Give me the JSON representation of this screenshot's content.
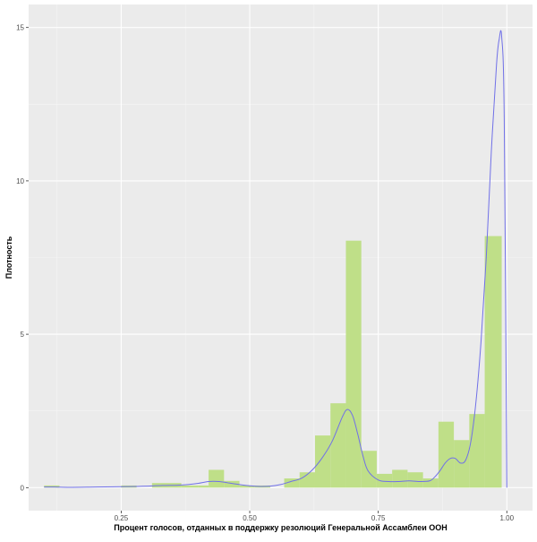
{
  "chart_data": {
    "type": "bar",
    "subtype": "histogram-with-density",
    "title": "",
    "xlabel": "Процент голосов, отданных в поддержку резолюций Генеральной Ассамблеи ООН",
    "ylabel": "Плотность",
    "xlim": [
      0.07,
      1.05
    ],
    "ylim": [
      -0.75,
      15.75
    ],
    "x_ticks": [
      0.25,
      0.5,
      0.75,
      1.0
    ],
    "x_tick_labels": [
      "0.25",
      "0.50",
      "0.75",
      "1.00"
    ],
    "y_ticks": [
      0,
      5,
      10,
      15
    ],
    "y_tick_labels": [
      "0",
      "5",
      "10",
      "15"
    ],
    "grid": true,
    "legend": "none",
    "colors": {
      "panel_background": "#ebebeb",
      "grid_major": "#ffffff",
      "grid_minor": "#f5f5f5",
      "bar_fill": "#bfdf88",
      "density_line": "#7070e8",
      "tick_text": "#4d4d4d"
    },
    "bins": [
      {
        "x0": 0.1,
        "x1": 0.13,
        "value": 0.07
      },
      {
        "x0": 0.13,
        "x1": 0.25,
        "value": 0.0
      },
      {
        "x0": 0.25,
        "x1": 0.28,
        "value": 0.07
      },
      {
        "x0": 0.28,
        "x1": 0.31,
        "value": 0.0
      },
      {
        "x0": 0.31,
        "x1": 0.367,
        "value": 0.15
      },
      {
        "x0": 0.367,
        "x1": 0.4,
        "value": 0.07
      },
      {
        "x0": 0.4,
        "x1": 0.42,
        "value": 0.07
      },
      {
        "x0": 0.42,
        "x1": 0.45,
        "value": 0.58
      },
      {
        "x0": 0.45,
        "x1": 0.48,
        "value": 0.22
      },
      {
        "x0": 0.48,
        "x1": 0.51,
        "value": 0.07
      },
      {
        "x0": 0.51,
        "x1": 0.54,
        "value": 0.07
      },
      {
        "x0": 0.54,
        "x1": 0.567,
        "value": 0.0
      },
      {
        "x0": 0.567,
        "x1": 0.597,
        "value": 0.3
      },
      {
        "x0": 0.597,
        "x1": 0.627,
        "value": 0.5
      },
      {
        "x0": 0.627,
        "x1": 0.657,
        "value": 1.7
      },
      {
        "x0": 0.657,
        "x1": 0.687,
        "value": 2.75
      },
      {
        "x0": 0.687,
        "x1": 0.717,
        "value": 8.05
      },
      {
        "x0": 0.717,
        "x1": 0.747,
        "value": 1.2
      },
      {
        "x0": 0.747,
        "x1": 0.777,
        "value": 0.45
      },
      {
        "x0": 0.777,
        "x1": 0.807,
        "value": 0.58
      },
      {
        "x0": 0.807,
        "x1": 0.837,
        "value": 0.5
      },
      {
        "x0": 0.837,
        "x1": 0.867,
        "value": 0.3
      },
      {
        "x0": 0.867,
        "x1": 0.897,
        "value": 2.15
      },
      {
        "x0": 0.897,
        "x1": 0.927,
        "value": 1.55
      },
      {
        "x0": 0.927,
        "x1": 0.957,
        "value": 2.4
      },
      {
        "x0": 0.957,
        "x1": 0.99,
        "value": 8.2
      }
    ],
    "density": {
      "x": [
        0.1,
        0.12,
        0.15,
        0.2,
        0.25,
        0.28,
        0.3,
        0.33,
        0.36,
        0.38,
        0.4,
        0.42,
        0.44,
        0.46,
        0.48,
        0.5,
        0.52,
        0.54,
        0.56,
        0.58,
        0.6,
        0.62,
        0.64,
        0.66,
        0.68,
        0.69,
        0.7,
        0.71,
        0.72,
        0.73,
        0.75,
        0.77,
        0.79,
        0.81,
        0.83,
        0.85,
        0.86,
        0.87,
        0.88,
        0.89,
        0.9,
        0.91,
        0.92,
        0.93,
        0.94,
        0.95,
        0.96,
        0.97,
        0.98,
        0.985,
        0.99,
        0.995,
        1.0
      ],
      "y": [
        0.02,
        0.02,
        0.01,
        0.02,
        0.03,
        0.04,
        0.05,
        0.07,
        0.08,
        0.1,
        0.14,
        0.2,
        0.2,
        0.15,
        0.1,
        0.06,
        0.04,
        0.05,
        0.1,
        0.2,
        0.3,
        0.55,
        0.95,
        1.5,
        2.3,
        2.55,
        2.35,
        1.75,
        1.05,
        0.55,
        0.25,
        0.2,
        0.2,
        0.22,
        0.2,
        0.22,
        0.35,
        0.55,
        0.8,
        0.95,
        0.95,
        0.8,
        0.9,
        1.5,
        2.8,
        4.8,
        7.5,
        11.0,
        13.8,
        14.6,
        14.7,
        12.0,
        0.0
      ]
    }
  }
}
